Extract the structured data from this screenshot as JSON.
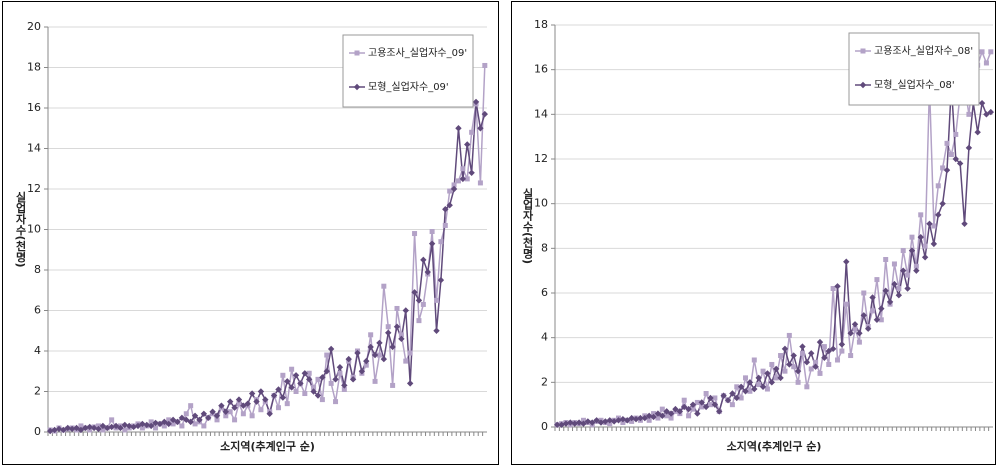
{
  "chart_data": [
    {
      "type": "line",
      "y_label": "실업자수(천명)",
      "x_label": "소지역(추계인구 순)",
      "ylim": [
        0,
        20
      ],
      "yticks": [
        0,
        2,
        4,
        6,
        8,
        10,
        12,
        14,
        16,
        18,
        20
      ],
      "grid": true,
      "legend": "upper right",
      "categories": [
        null,
        null,
        null,
        null,
        null,
        null,
        null,
        null,
        null,
        null,
        null,
        null,
        null,
        null,
        null,
        null,
        null,
        null,
        null,
        null,
        null,
        null,
        null,
        null,
        null,
        null,
        null,
        null,
        null,
        null,
        null,
        null,
        null,
        null,
        null,
        null,
        null,
        null,
        null,
        null,
        null,
        null,
        null,
        null,
        null,
        null,
        null,
        null,
        null,
        null,
        null,
        null,
        null,
        null,
        null,
        null,
        null,
        null,
        null,
        null,
        null,
        null,
        null,
        null,
        null,
        null,
        null,
        null,
        null,
        null,
        null,
        null,
        null,
        null,
        null,
        null,
        null,
        null,
        null,
        null,
        null,
        null,
        null,
        null,
        null,
        null,
        null,
        null,
        null,
        null,
        null,
        null,
        null,
        null,
        null,
        null,
        null,
        null,
        null,
        null
      ],
      "series": [
        {
          "name": "고용조사_실업자수_09'",
          "color": "#b3a2c7",
          "marker": "square",
          "values": [
            0.1,
            0.05,
            0.2,
            0.1,
            0.15,
            0.2,
            0.1,
            0.3,
            0.2,
            0.1,
            0.25,
            0.3,
            0.1,
            0.2,
            0.6,
            0.2,
            0.3,
            0.1,
            0.2,
            0.3,
            0.4,
            0.2,
            0.3,
            0.5,
            0.2,
            0.4,
            0.3,
            0.6,
            0.4,
            0.5,
            0.3,
            0.9,
            1.3,
            0.4,
            0.5,
            0.3,
            0.7,
            0.9,
            0.6,
            1.2,
            0.8,
            1.0,
            0.6,
            1.4,
            0.9,
            1.3,
            0.8,
            1.6,
            1.1,
            1.5,
            1.0,
            1.8,
            1.2,
            2.8,
            1.4,
            3.1,
            2.0,
            2.4,
            1.9,
            2.9,
            2.2,
            2.6,
            1.6,
            3.8,
            2.4,
            1.5,
            2.9,
            2.1,
            3.5,
            2.7,
            4.0,
            2.9,
            3.3,
            4.8,
            2.5,
            3.8,
            7.2,
            5.2,
            2.3,
            6.1,
            4.8,
            3.5,
            3.9,
            9.8,
            5.5,
            6.3,
            7.8,
            9.9,
            6.5,
            9.4,
            10.2,
            11.9,
            12.2,
            12.4,
            13.0,
            12.5,
            14.8,
            16.2,
            12.3,
            18.1
          ]
        },
        {
          "name": "모형_실업자수_09'",
          "color": "#604a7b",
          "marker": "diamond",
          "values": [
            0.05,
            0.1,
            0.15,
            0.1,
            0.2,
            0.15,
            0.2,
            0.1,
            0.2,
            0.25,
            0.2,
            0.15,
            0.3,
            0.2,
            0.25,
            0.3,
            0.2,
            0.35,
            0.3,
            0.25,
            0.3,
            0.4,
            0.35,
            0.3,
            0.45,
            0.4,
            0.5,
            0.4,
            0.6,
            0.5,
            0.7,
            0.6,
            0.5,
            0.8,
            0.6,
            0.9,
            0.7,
            1.0,
            0.8,
            1.3,
            1.0,
            1.5,
            1.2,
            1.6,
            1.3,
            1.4,
            1.9,
            1.5,
            2.0,
            1.6,
            0.9,
            1.8,
            2.1,
            1.7,
            2.5,
            2.2,
            2.8,
            2.4,
            2.9,
            2.6,
            2.0,
            1.8,
            2.7,
            3.0,
            4.1,
            2.6,
            3.2,
            2.3,
            3.6,
            2.6,
            3.9,
            3.0,
            3.5,
            4.2,
            3.8,
            4.4,
            3.6,
            4.9,
            4.2,
            5.2,
            4.6,
            6.0,
            2.4,
            6.9,
            6.5,
            8.5,
            7.9,
            9.3,
            5.0,
            7.5,
            11.0,
            11.2,
            12.0,
            15.0,
            12.5,
            14.2,
            12.8,
            16.3,
            15.0,
            15.7
          ]
        }
      ]
    },
    {
      "type": "line",
      "y_label": "실업자수(천명)",
      "x_label": "소지역(추계인구 순)",
      "ylim": [
        0,
        18
      ],
      "yticks": [
        0,
        2,
        4,
        6,
        8,
        10,
        12,
        14,
        16,
        18
      ],
      "grid": true,
      "legend": "upper right",
      "categories": [
        null,
        null,
        null,
        null,
        null,
        null,
        null,
        null,
        null,
        null,
        null,
        null,
        null,
        null,
        null,
        null,
        null,
        null,
        null,
        null,
        null,
        null,
        null,
        null,
        null,
        null,
        null,
        null,
        null,
        null,
        null,
        null,
        null,
        null,
        null,
        null,
        null,
        null,
        null,
        null,
        null,
        null,
        null,
        null,
        null,
        null,
        null,
        null,
        null,
        null,
        null,
        null,
        null,
        null,
        null,
        null,
        null,
        null,
        null,
        null,
        null,
        null,
        null,
        null,
        null,
        null,
        null,
        null,
        null,
        null,
        null,
        null,
        null,
        null,
        null,
        null,
        null,
        null,
        null,
        null,
        null,
        null,
        null,
        null,
        null,
        null,
        null,
        null,
        null,
        null,
        null,
        null,
        null,
        null,
        null,
        null,
        null,
        null,
        null,
        null
      ],
      "series": [
        {
          "name": "고용조사_실업자수_08'",
          "color": "#b3a2c7",
          "marker": "square",
          "values": [
            0.1,
            0.15,
            0.2,
            0.1,
            0.2,
            0.15,
            0.3,
            0.2,
            0.1,
            0.25,
            0.3,
            0.2,
            0.15,
            0.3,
            0.4,
            0.2,
            0.3,
            0.25,
            0.4,
            0.3,
            0.5,
            0.3,
            0.6,
            0.4,
            0.8,
            0.5,
            0.4,
            0.7,
            0.6,
            1.2,
            0.5,
            0.8,
            1.1,
            0.9,
            1.5,
            1.0,
            1.3,
            0.7,
            1.4,
            1.2,
            1.0,
            1.8,
            1.3,
            2.2,
            1.6,
            3.0,
            1.9,
            2.5,
            1.7,
            2.8,
            2.2,
            3.2,
            2.5,
            4.1,
            2.7,
            2.0,
            3.3,
            1.8,
            2.6,
            2.9,
            2.4,
            3.6,
            2.8,
            6.2,
            3.0,
            3.4,
            5.5,
            3.2,
            4.4,
            3.8,
            6.0,
            4.5,
            5.2,
            6.6,
            4.8,
            7.5,
            5.5,
            7.3,
            6.2,
            7.9,
            6.8,
            8.5,
            7.2,
            9.5,
            8.1,
            15.3,
            9.0,
            10.8,
            11.6,
            12.7,
            12.2,
            13.1,
            14.9,
            15.3,
            14.0,
            15.8,
            16.2,
            16.8,
            16.3,
            16.8
          ]
        },
        {
          "name": "모형_실업자수_08'",
          "color": "#604a7b",
          "marker": "diamond",
          "values": [
            0.1,
            0.1,
            0.15,
            0.2,
            0.15,
            0.2,
            0.15,
            0.25,
            0.2,
            0.3,
            0.2,
            0.25,
            0.3,
            0.25,
            0.3,
            0.35,
            0.3,
            0.4,
            0.35,
            0.4,
            0.4,
            0.5,
            0.45,
            0.6,
            0.5,
            0.7,
            0.6,
            0.8,
            0.7,
            0.9,
            0.8,
            1.0,
            0.6,
            1.1,
            0.9,
            1.3,
            1.0,
            0.7,
            1.4,
            1.2,
            1.5,
            1.3,
            1.8,
            1.6,
            2.0,
            1.7,
            2.2,
            1.8,
            2.4,
            2.0,
            2.6,
            2.2,
            3.5,
            2.8,
            3.2,
            2.5,
            3.6,
            2.9,
            3.3,
            2.7,
            3.8,
            3.1,
            3.4,
            3.5,
            6.3,
            3.7,
            7.4,
            4.2,
            4.6,
            4.2,
            5.0,
            4.4,
            5.8,
            4.8,
            5.3,
            6.1,
            5.6,
            6.4,
            5.9,
            7.0,
            6.2,
            7.9,
            7.0,
            8.5,
            7.6,
            9.1,
            8.2,
            9.5,
            10.0,
            11.5,
            15.3,
            12.0,
            11.8,
            9.1,
            12.5,
            14.5,
            13.2,
            14.5,
            14.0,
            14.1
          ]
        }
      ]
    }
  ]
}
